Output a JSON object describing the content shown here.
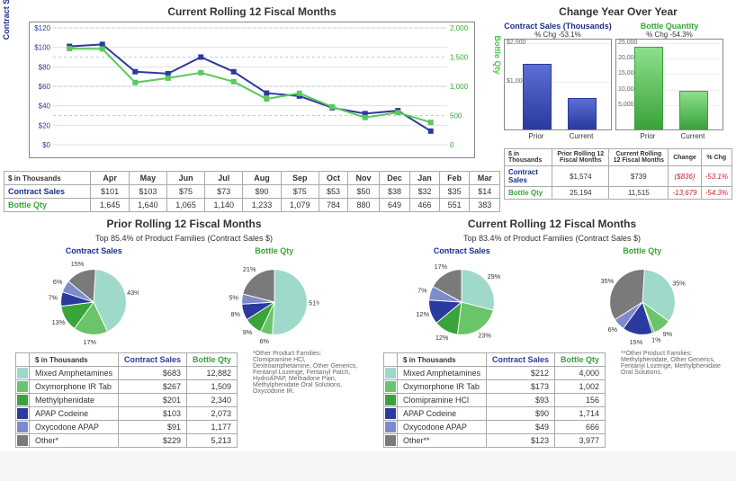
{
  "colors": {
    "contract": "#2b3a9e",
    "contract_dark": "#1a2468",
    "bottle": "#5bc95b",
    "bottle_dark": "#3aa33a",
    "grid": "#e0e0e0",
    "grid_dash": "#b8cde8",
    "border": "#888888",
    "neg": "#c2272d",
    "pie": [
      "#9fd9c9",
      "#6ac46a",
      "#3aa33a",
      "#2b3a9e",
      "#7d8bcc",
      "#7a7a7a"
    ]
  },
  "main_chart": {
    "title": "Current Rolling 12 Fiscal Months",
    "left_axis_label": "Contract Sales (Thousands)",
    "right_axis_label": "Bottle Qty",
    "months": [
      "Apr",
      "May",
      "Jun",
      "Jul",
      "Aug",
      "Sep",
      "Oct",
      "Nov",
      "Dec",
      "Jan",
      "Feb",
      "Mar"
    ],
    "left_ticks": [
      0,
      20,
      40,
      60,
      80,
      100,
      120
    ],
    "left_max": 120,
    "right_ticks": [
      0,
      500,
      1000,
      1500,
      2000
    ],
    "right_max": 2000,
    "contract_series": [
      101,
      103,
      75,
      73,
      90,
      75,
      53,
      50,
      38,
      32,
      35,
      14
    ],
    "bottle_series": [
      1645,
      1640,
      1065,
      1140,
      1233,
      1079,
      784,
      880,
      649,
      466,
      551,
      383
    ]
  },
  "main_table": {
    "row_header": "$ in Thousands",
    "contract_label": "Contract Sales",
    "bottle_label": "Bottle Qty",
    "contract_values": [
      "$101",
      "$103",
      "$75",
      "$73",
      "$90",
      "$75",
      "$53",
      "$50",
      "$38",
      "$32",
      "$35",
      "$14"
    ],
    "bottle_values": [
      "1,645",
      "1,640",
      "1,065",
      "1,140",
      "1,233",
      "1,079",
      "784",
      "880",
      "649",
      "466",
      "551",
      "383"
    ]
  },
  "yoy": {
    "title": "Change Year Over Year",
    "contract": {
      "label": "Contract Sales (Thousands)",
      "pct_label": "% Chg -53.1%",
      "prior": 1574,
      "current": 739,
      "max": 2000,
      "ticks": [
        "$2,000",
        "$1,000"
      ]
    },
    "bottle": {
      "label": "Bottle Quantity",
      "pct_label": "% Chg -54.3%",
      "prior": 25194,
      "current": 11515,
      "max": 25000,
      "ticks": [
        "25,000",
        "20,000",
        "15,000",
        "10,000",
        "5,000"
      ]
    },
    "bar_labels": [
      "Prior",
      "Current"
    ]
  },
  "yoy_table": {
    "headers": [
      "$ in Thousands",
      "Prior Rolling 12 Fiscal Months",
      "Current Rolling 12 Fiscal Months",
      "Change",
      "% Chg"
    ],
    "rows": [
      {
        "label": "Contract Sales",
        "class": "contract",
        "prior": "$1,574",
        "current": "$739",
        "change": "($836)",
        "pct": "-53.1%"
      },
      {
        "label": "Bottle Qty",
        "class": "bottle",
        "prior": "25,194",
        "current": "11,515",
        "change": "-13,679",
        "pct": "-54.3%"
      }
    ]
  },
  "pies": {
    "prior": {
      "title": "Prior Rolling 12 Fiscal Months",
      "subtitle": "Top 85.4% of Product Families (Contract Sales $)",
      "contract_pcts": [
        43,
        17,
        13,
        7,
        6,
        15
      ],
      "bottle_pcts": [
        51,
        6,
        9,
        8,
        5,
        21
      ]
    },
    "current": {
      "title": "Current Rolling 12 Fiscal Months",
      "subtitle": "Top 83.4% of Product Families (Contract Sales $)",
      "contract_pcts": [
        29,
        23,
        12,
        12,
        7,
        17
      ],
      "bottle_pcts": [
        35,
        9,
        1,
        15,
        6,
        35
      ]
    }
  },
  "families": {
    "header": "$ in Thousands",
    "col_contract": "Contract Sales",
    "col_bottle": "Bottle Qty",
    "prior": [
      {
        "name": "Mixed Amphetamines",
        "c": "$683",
        "b": "12,882"
      },
      {
        "name": "Oxymorphone IR Tab",
        "c": "$267",
        "b": "1,509"
      },
      {
        "name": "Methylphenidate",
        "c": "$201",
        "b": "2,340"
      },
      {
        "name": "APAP Codeine",
        "c": "$103",
        "b": "2,073"
      },
      {
        "name": "Oxycodone APAP",
        "c": "$91",
        "b": "1,177"
      },
      {
        "name": "Other*",
        "c": "$229",
        "b": "5,213"
      }
    ],
    "current": [
      {
        "name": "Mixed Amphetamines",
        "c": "$212",
        "b": "4,000"
      },
      {
        "name": "Oxymorphone IR Tab",
        "c": "$173",
        "b": "1,002"
      },
      {
        "name": "Clomipramine HCl",
        "c": "$93",
        "b": "156"
      },
      {
        "name": "APAP Codeine",
        "c": "$90",
        "b": "1,714"
      },
      {
        "name": "Oxycodone APAP",
        "c": "$49",
        "b": "666"
      },
      {
        "name": "Other**",
        "c": "$123",
        "b": "3,977"
      }
    ]
  },
  "footnotes": {
    "prior": "*Other Product Families: Clomipramine HCl, Dextroamphetamine, Other Generics, Fentanyl Lozenge, Fentanyl Patch, HydroAPAP, Methadone Pain, Methylphenidate Oral Solutions, Oxycodone IR.",
    "current": "**Other Product Families: Methylphenidate, Other Generics, Fentanyl Lozenge, Methylphenidate Oral Solutions."
  }
}
